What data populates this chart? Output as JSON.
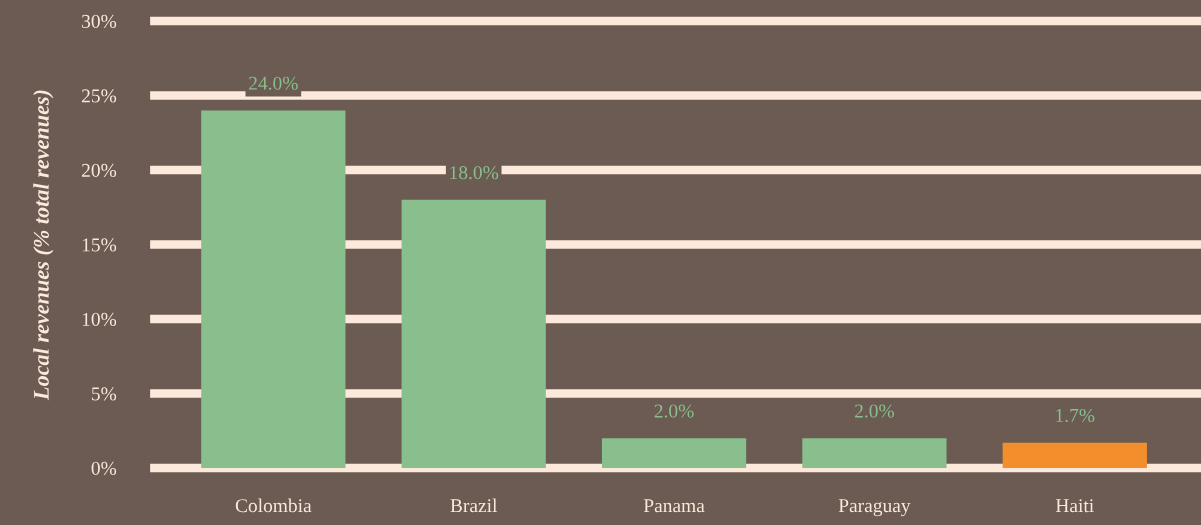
{
  "chart_data": {
    "type": "bar",
    "ylabel": "Local revenues (% total revenues)",
    "categories": [
      "Colombia",
      "Brazil",
      "Panama",
      "Paraguay",
      "Haiti"
    ],
    "values": [
      24.0,
      18.0,
      2.0,
      2.0,
      1.7
    ],
    "colors": [
      "#88bf8c",
      "#88bf8c",
      "#88bf8c",
      "#88bf8c",
      "#f28e2b"
    ],
    "value_labels": [
      "24.0%",
      "18.0%",
      "2.0%",
      "2.0%",
      "1.7%"
    ],
    "ylim": [
      0,
      30
    ],
    "yticks": [
      {
        "value": 0,
        "label": "0%"
      },
      {
        "value": 5,
        "label": "5%"
      },
      {
        "value": 10,
        "label": "10%"
      },
      {
        "value": 15,
        "label": "15%"
      },
      {
        "value": 20,
        "label": "20%"
      },
      {
        "value": 25,
        "label": "25%"
      },
      {
        "value": 30,
        "label": "30%"
      }
    ],
    "grid": "y",
    "legend": false
  }
}
